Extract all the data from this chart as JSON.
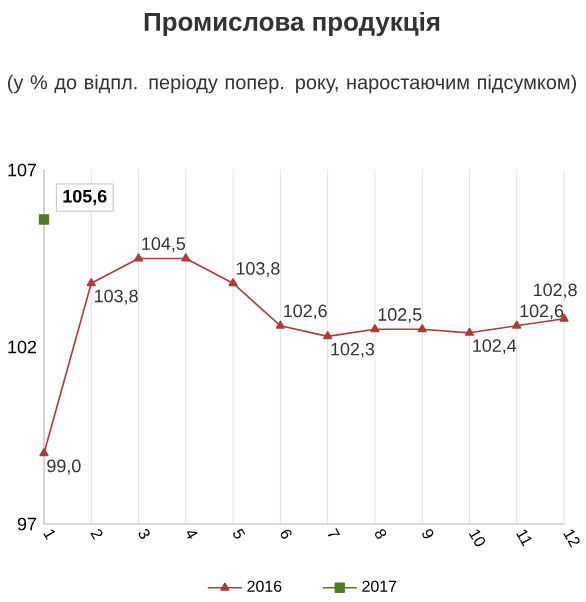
{
  "chart_data": {
    "type": "line",
    "title": "Промислова продукція",
    "subtitle": "(у % до відпл. періоду попер. року, наростаючим підсумком)",
    "categories": [
      "1",
      "2",
      "3",
      "4",
      "5",
      "6",
      "7",
      "8",
      "9",
      "10",
      "11",
      "12"
    ],
    "ylim": [
      97,
      107
    ],
    "yticks": [
      97,
      102,
      107
    ],
    "grid": "x",
    "legend": "bottom",
    "line_style": "solid",
    "series": [
      {
        "name": "2016",
        "color": "#b03a3a",
        "marker": "triangle",
        "values": [
          99.0,
          103.8,
          104.5,
          104.5,
          103.8,
          102.6,
          102.3,
          102.5,
          102.5,
          102.4,
          102.6,
          102.8
        ],
        "value_labels": [
          "99,0",
          "103,8",
          "104,5",
          null,
          "103,8",
          "102,6",
          "102,3",
          "102,5",
          null,
          "102,4",
          "102,6",
          "102,8"
        ]
      },
      {
        "name": "2017",
        "color": "#4f7a28",
        "marker": "square",
        "values": [
          105.6,
          null,
          null,
          null,
          null,
          null,
          null,
          null,
          null,
          null,
          null,
          null
        ],
        "value_labels": [
          "105,6",
          null,
          null,
          null,
          null,
          null,
          null,
          null,
          null,
          null,
          null,
          null
        ]
      }
    ]
  }
}
